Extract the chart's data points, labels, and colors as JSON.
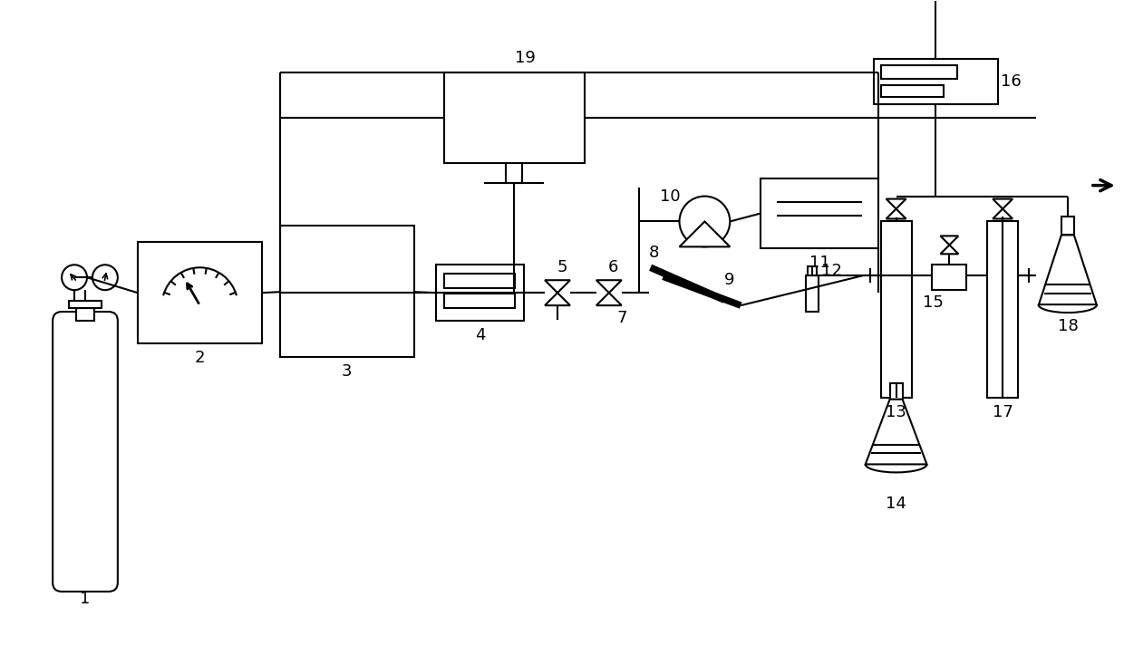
{
  "bg_color": "#ffffff",
  "line_color": "#000000",
  "line_width": 1.5,
  "fig_width": 12.4,
  "fig_height": 7.34,
  "dpi": 100
}
